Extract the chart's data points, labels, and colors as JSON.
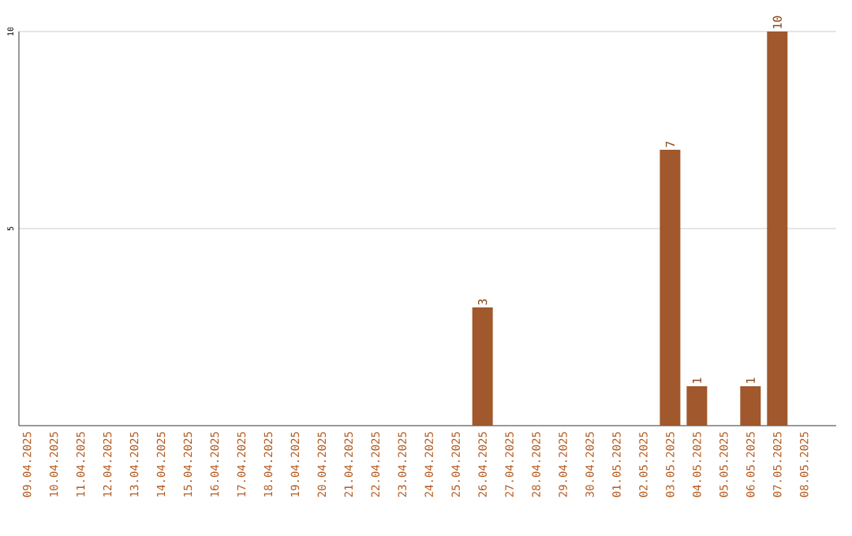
{
  "chart_data": {
    "type": "bar",
    "categories": [
      "09.04.2025",
      "10.04.2025",
      "11.04.2025",
      "12.04.2025",
      "13.04.2025",
      "14.04.2025",
      "15.04.2025",
      "16.04.2025",
      "17.04.2025",
      "18.04.2025",
      "19.04.2025",
      "20.04.2025",
      "21.04.2025",
      "22.04.2025",
      "23.04.2025",
      "24.04.2025",
      "25.04.2025",
      "26.04.2025",
      "27.04.2025",
      "28.04.2025",
      "29.04.2025",
      "30.04.2025",
      "01.05.2025",
      "02.05.2025",
      "03.05.2025",
      "04.05.2025",
      "05.05.2025",
      "06.05.2025",
      "07.05.2025",
      "08.05.2025"
    ],
    "values": [
      0,
      0,
      0,
      0,
      0,
      0,
      0,
      0,
      0,
      0,
      0,
      0,
      0,
      0,
      0,
      0,
      0,
      3,
      0,
      0,
      0,
      0,
      0,
      0,
      7,
      1,
      0,
      1,
      10,
      0
    ],
    "value_labels": [
      null,
      null,
      null,
      null,
      null,
      null,
      null,
      null,
      null,
      null,
      null,
      null,
      null,
      null,
      null,
      null,
      null,
      "3",
      null,
      null,
      null,
      null,
      null,
      null,
      "7",
      "1",
      null,
      "1",
      "10",
      null
    ],
    "color": "#a0582c",
    "ylim": [
      0,
      10
    ],
    "yticks": [
      5,
      10
    ],
    "grid": "y"
  }
}
